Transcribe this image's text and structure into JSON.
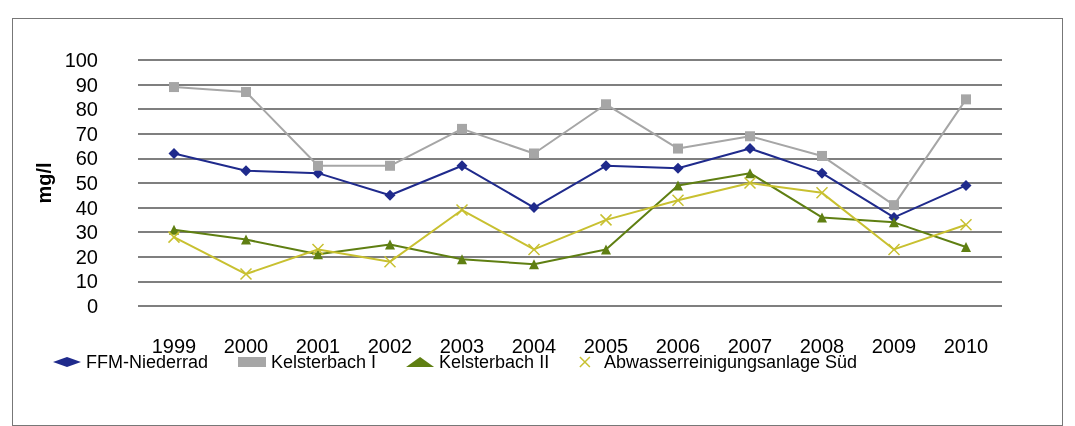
{
  "chart_data": {
    "type": "line",
    "ylabel": "mg/l",
    "categories": [
      "1999",
      "2000",
      "2001",
      "2002",
      "2003",
      "2004",
      "2005",
      "2006",
      "2007",
      "2008",
      "2009",
      "2010"
    ],
    "series": [
      {
        "name": "FFM-Niederrad",
        "color": "#1f2a8c",
        "marker": "diamond",
        "values": [
          62,
          55,
          54,
          45,
          57,
          40,
          57,
          56,
          64,
          54,
          36,
          49
        ]
      },
      {
        "name": "Kelsterbach I",
        "color": "#a6a6a6",
        "marker": "square",
        "values": [
          89,
          87,
          57,
          57,
          72,
          62,
          82,
          64,
          69,
          61,
          41,
          84
        ]
      },
      {
        "name": "Kelsterbach II",
        "color": "#5f7f12",
        "marker": "triangle",
        "values": [
          31,
          27,
          21,
          25,
          19,
          17,
          23,
          49,
          54,
          36,
          34,
          24
        ]
      },
      {
        "name": "Abwasserreinigungsanlage Süd",
        "color": "#c8c030",
        "marker": "cross",
        "values": [
          28,
          13,
          23,
          18,
          39,
          23,
          35,
          43,
          50,
          46,
          23,
          33
        ]
      }
    ],
    "ylim": [
      0,
      100
    ],
    "yticks": [
      0,
      10,
      20,
      30,
      40,
      50,
      60,
      70,
      80,
      90,
      100
    ],
    "grid": "y",
    "legend": "bottom"
  }
}
